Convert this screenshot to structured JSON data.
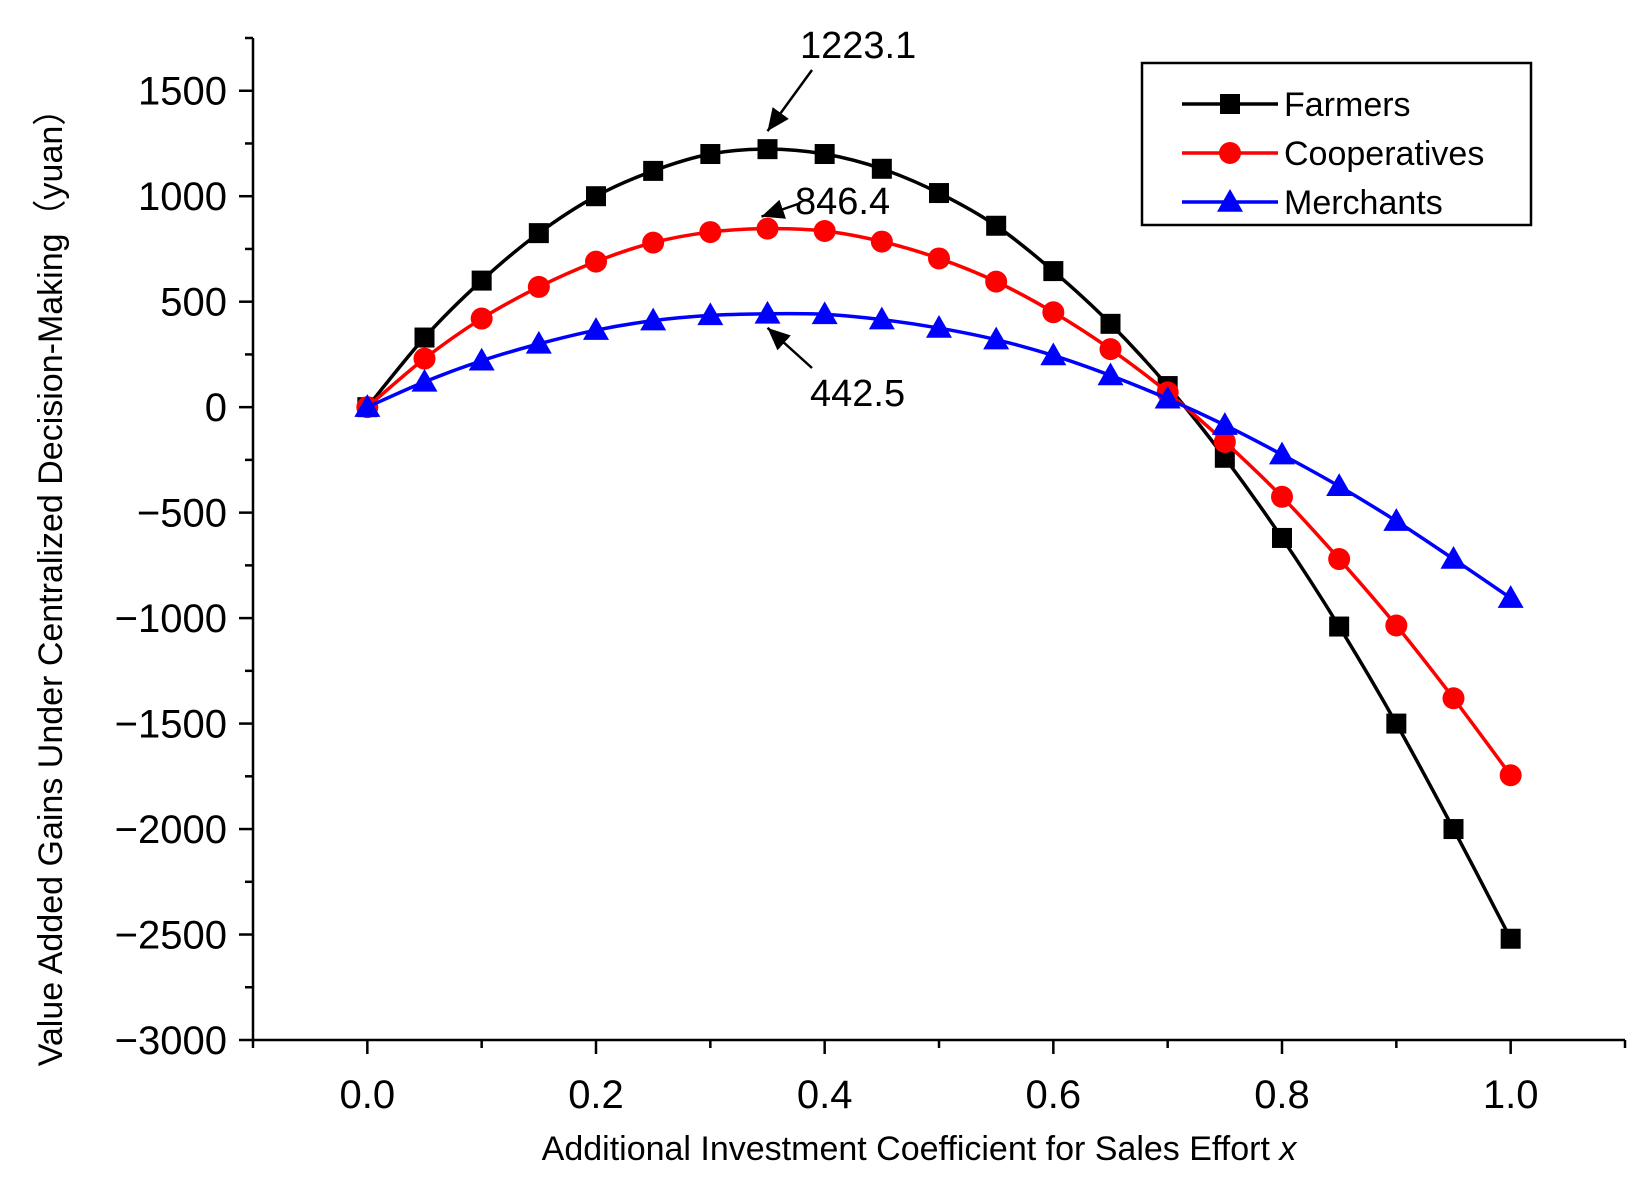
{
  "chart_data": {
    "type": "line",
    "xlabel": "Additional Investment Coefficient for Sales Effort ",
    "xlabel_var": "x",
    "ylabel": "Value Added Gains Under Centralized Decision-Making（yuan）",
    "xlim": [
      -0.1,
      1.1
    ],
    "ylim": [
      -3000,
      1750
    ],
    "x_ticks": [
      0.0,
      0.2,
      0.4,
      0.6,
      0.8,
      1.0
    ],
    "x_tick_labels": [
      "0.0",
      "0.2",
      "0.4",
      "0.6",
      "0.8",
      "1.0"
    ],
    "y_ticks": [
      -3000,
      -2500,
      -2000,
      -1500,
      -1000,
      -500,
      0,
      500,
      1000,
      1500
    ],
    "y_tick_labels": [
      "−3000",
      "−2500",
      "−2000",
      "−1500",
      "−1000",
      "−500",
      "0",
      "500",
      "1000",
      "1500"
    ],
    "grid": false,
    "legend_position": "top-right",
    "x": [
      0,
      0.05,
      0.1,
      0.15,
      0.2,
      0.25,
      0.3,
      0.35,
      0.4,
      0.45,
      0.5,
      0.55,
      0.6,
      0.65,
      0.7,
      0.75,
      0.8,
      0.85,
      0.9,
      0.95,
      1.0
    ],
    "series": [
      {
        "name": "Farmers",
        "color": "#000000",
        "marker": "square",
        "values": [
          0,
          330,
          600,
          825,
          1000,
          1120,
          1200,
          1223.1,
          1200,
          1130,
          1015,
          860,
          645,
          395,
          100,
          -240,
          -620,
          -1040,
          -1500,
          -2000,
          -2520
        ]
      },
      {
        "name": "Cooperatives",
        "color": "#ff0000",
        "marker": "circle",
        "values": [
          0,
          230,
          420,
          570,
          690,
          780,
          830,
          846.4,
          835,
          785,
          705,
          595,
          450,
          275,
          70,
          -165,
          -425,
          -720,
          -1035,
          -1380,
          -1745
        ]
      },
      {
        "name": "Merchants",
        "color": "#0000ff",
        "marker": "triangle",
        "values": [
          0,
          120,
          220,
          300,
          365,
          410,
          435,
          442.5,
          440,
          415,
          375,
          320,
          245,
          150,
          40,
          -85,
          -225,
          -375,
          -540,
          -720,
          -905
        ]
      }
    ],
    "annotations": [
      {
        "text": "1223.1",
        "x": 0.35,
        "y": 1223.1
      },
      {
        "text": "846.4",
        "x": 0.35,
        "y": 846.4
      },
      {
        "text": "442.5",
        "x": 0.35,
        "y": 442.5
      }
    ]
  }
}
